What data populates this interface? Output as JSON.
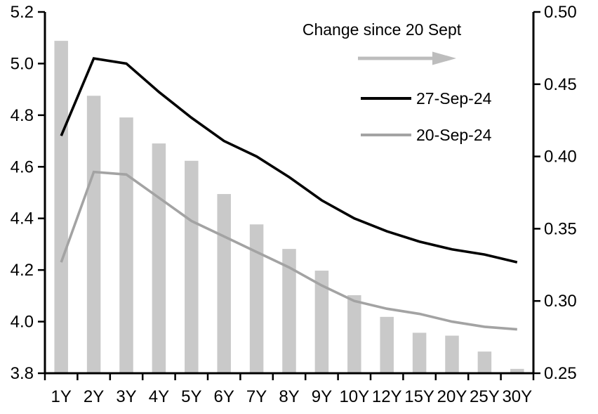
{
  "chart_data": {
    "type": "combo: bar (right axis) + line (left axis)",
    "title": "",
    "xlabel": "",
    "ylabel_left": "",
    "ylabel_right": "",
    "grid": false,
    "legend_position": "top-right-inside",
    "categories": [
      "1Y",
      "2Y",
      "3Y",
      "4Y",
      "5Y",
      "6Y",
      "7Y",
      "8Y",
      "9Y",
      "10Y",
      "12Y",
      "15Y",
      "20Y",
      "25Y",
      "30Y"
    ],
    "bar_series": {
      "name": "Change since 20 Sept",
      "axis": "right",
      "values": [
        0.48,
        0.442,
        0.427,
        0.409,
        0.397,
        0.374,
        0.353,
        0.336,
        0.321,
        0.304,
        0.289,
        0.278,
        0.276,
        0.265,
        0.253
      ]
    },
    "line_series": [
      {
        "name": "27-Sep-24",
        "axis": "left",
        "color": "#000000",
        "values": [
          4.72,
          5.02,
          5.0,
          4.89,
          4.79,
          4.7,
          4.64,
          4.56,
          4.47,
          4.4,
          4.35,
          4.31,
          4.28,
          4.26,
          4.23
        ]
      },
      {
        "name": "20-Sep-24",
        "axis": "left",
        "color": "#a3a3a3",
        "values": [
          4.23,
          4.58,
          4.57,
          4.48,
          4.39,
          4.33,
          4.27,
          4.21,
          4.14,
          4.08,
          4.05,
          4.03,
          4.0,
          3.98,
          3.97
        ]
      }
    ],
    "left_axis": {
      "min": 3.8,
      "max": 5.2,
      "tick_labels": [
        "5.2",
        "5.0",
        "4.8",
        "4.6",
        "4.4",
        "4.2",
        "4.0",
        "3.8"
      ]
    },
    "right_axis": {
      "min": 0.25,
      "max": 0.5,
      "tick_labels": [
        "0.50",
        "0.45",
        "0.40",
        "0.35",
        "0.30",
        "0.25"
      ]
    },
    "colors": {
      "bar": "#c9c9c9",
      "arrow": "#bdbdbd",
      "axis": "#000000",
      "text": "#000000"
    }
  }
}
